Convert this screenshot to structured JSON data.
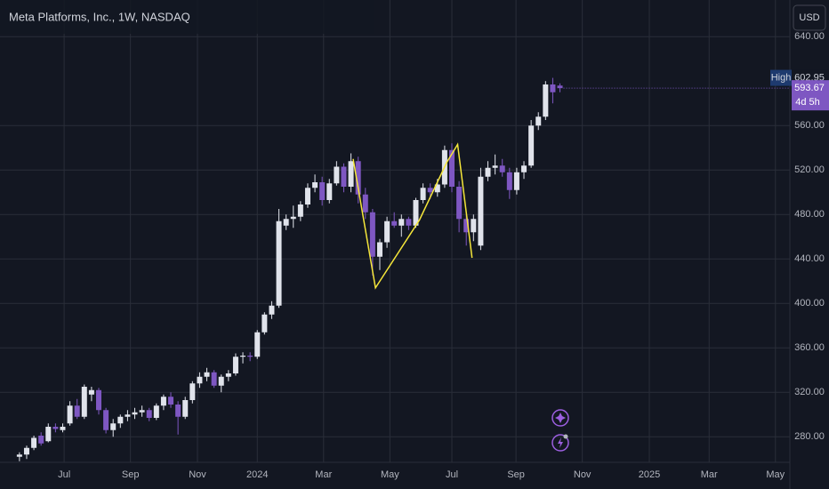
{
  "chart_data": {
    "type": "candlestick",
    "title": "Meta Platforms, Inc., 1W, NASDAQ",
    "currency": "USD",
    "high_label": "High",
    "countdown": "4d 5h",
    "categories": [
      null,
      null,
      null,
      null,
      null,
      null,
      null,
      null,
      null,
      null,
      null,
      null,
      null,
      null,
      null,
      null,
      null,
      null,
      null,
      null,
      null,
      null,
      null,
      null,
      null,
      null,
      null,
      null,
      null,
      null,
      null,
      null,
      null,
      null,
      null,
      null,
      null,
      null,
      null,
      null,
      null,
      null,
      null,
      null,
      null,
      null,
      null,
      null,
      null,
      null,
      null,
      null,
      null,
      null,
      null,
      null,
      null,
      null,
      null,
      null,
      null,
      null,
      null,
      null,
      null,
      null,
      null,
      null,
      null,
      null,
      null,
      null,
      null,
      null,
      null,
      null
    ],
    "open": [
      262,
      264,
      270,
      281,
      276,
      289,
      286,
      292,
      308,
      298,
      318,
      322,
      304,
      286,
      292,
      298,
      300,
      302,
      304,
      297,
      308,
      316,
      309,
      298,
      313,
      328,
      334,
      338,
      326,
      334,
      337,
      352,
      353,
      352,
      374,
      390,
      398,
      470,
      476,
      478,
      489,
      504,
      509,
      493,
      508,
      523,
      505,
      528,
      498,
      482,
      442,
      455,
      474,
      470,
      476,
      470,
      493,
      504,
      500,
      507,
      538,
      505,
      476,
      464,
      452,
      514,
      522,
      524,
      518,
      502,
      518,
      524,
      560,
      568,
      597,
      596
    ],
    "high": [
      266,
      272,
      281,
      284,
      292,
      292,
      292,
      312,
      314,
      327,
      325,
      324,
      306,
      296,
      300,
      304,
      306,
      308,
      306,
      310,
      318,
      320,
      312,
      316,
      330,
      338,
      342,
      340,
      336,
      340,
      355,
      356,
      356,
      376,
      392,
      402,
      485,
      480,
      488,
      492,
      508,
      516,
      514,
      512,
      528,
      526,
      535,
      532,
      504,
      485,
      458,
      478,
      482,
      480,
      478,
      495,
      508,
      508,
      512,
      542,
      544,
      510,
      480,
      480,
      522,
      528,
      534,
      530,
      522,
      522,
      528,
      565,
      572,
      600,
      602.95,
      598
    ],
    "low": [
      258,
      260,
      268,
      272,
      275,
      284,
      284,
      290,
      296,
      296,
      312,
      300,
      283,
      280,
      288,
      294,
      296,
      298,
      294,
      295,
      304,
      306,
      282,
      296,
      310,
      324,
      330,
      324,
      320,
      330,
      335,
      346,
      348,
      350,
      372,
      386,
      396,
      466,
      468,
      474,
      486,
      500,
      488,
      490,
      506,
      500,
      500,
      490,
      476,
      425,
      430,
      450,
      468,
      460,
      466,
      468,
      490,
      494,
      496,
      504,
      500,
      464,
      452,
      456,
      448,
      510,
      516,
      514,
      494,
      498,
      512,
      522,
      556,
      565,
      580,
      590
    ],
    "close": [
      264,
      270,
      279,
      274,
      289,
      287,
      289,
      308,
      298,
      325,
      322,
      304,
      286,
      292,
      298,
      300,
      302,
      304,
      297,
      308,
      316,
      309,
      298,
      313,
      328,
      334,
      338,
      326,
      334,
      337,
      352,
      353,
      352,
      374,
      390,
      398,
      474,
      476,
      478,
      489,
      504,
      509,
      493,
      508,
      523,
      505,
      528,
      498,
      482,
      442,
      455,
      474,
      470,
      476,
      470,
      493,
      504,
      500,
      507,
      538,
      505,
      476,
      464,
      476,
      514,
      522,
      524,
      518,
      502,
      518,
      524,
      560,
      568,
      597,
      590,
      593.67
    ],
    "up_color": "#e0e3eb",
    "down_color": "#7e57c2",
    "drawing": {
      "color": "#f5e63a",
      "x": [
        46.3,
        49.4,
        55.5,
        59.3,
        60.8,
        62.8
      ],
      "y": [
        530,
        414,
        475,
        527,
        543,
        441
      ]
    },
    "xlim": [
      -2.7,
      106.9
    ],
    "xticks": [
      {
        "value": 6.2,
        "label": "Jul"
      },
      {
        "value": 15.4,
        "label": "Sep"
      },
      {
        "value": 24.7,
        "label": "Nov"
      },
      {
        "value": 33.0,
        "label": "2024"
      },
      {
        "value": 42.2,
        "label": "Mar"
      },
      {
        "value": 51.4,
        "label": "May"
      },
      {
        "value": 60.0,
        "label": "Jul"
      },
      {
        "value": 68.9,
        "label": "Sep"
      },
      {
        "value": 78.1,
        "label": "Nov"
      },
      {
        "value": 87.4,
        "label": "2025"
      },
      {
        "value": 95.7,
        "label": "Mar"
      },
      {
        "value": 104.9,
        "label": "May"
      }
    ],
    "ylim": [
      257,
      673
    ],
    "yticks": [
      {
        "value": 280,
        "label": "280.00"
      },
      {
        "value": 320,
        "label": "320.00"
      },
      {
        "value": 360,
        "label": "360.00"
      },
      {
        "value": 400,
        "label": "400.00"
      },
      {
        "value": 440,
        "label": "440.00"
      },
      {
        "value": 480,
        "label": "480.00"
      },
      {
        "value": 520,
        "label": "520.00"
      },
      {
        "value": 560,
        "label": "560.00"
      },
      {
        "value": 640,
        "label": "640.00"
      }
    ],
    "grid": true
  }
}
